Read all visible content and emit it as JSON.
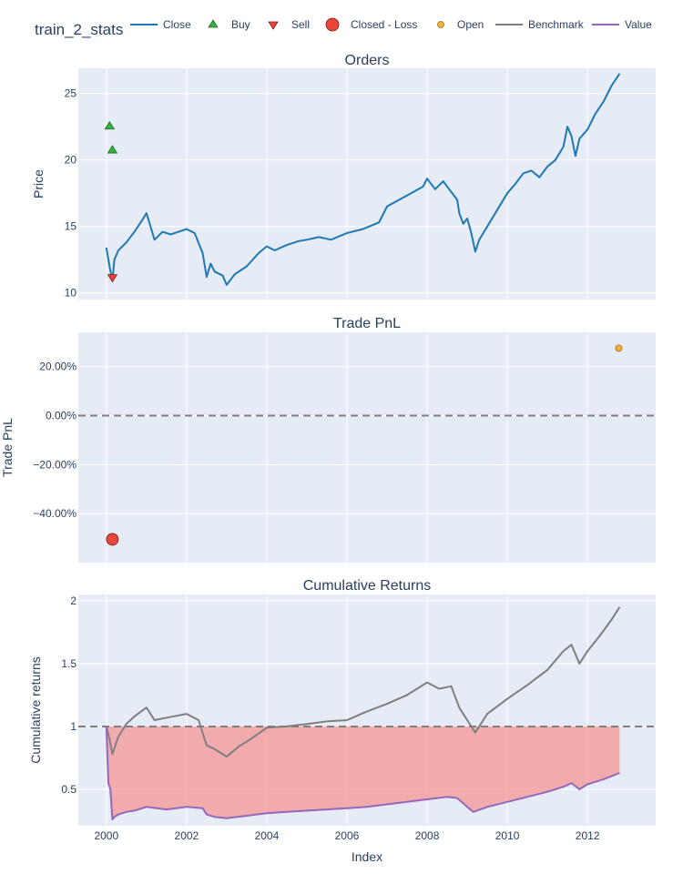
{
  "figure": {
    "title": "train_2_stats",
    "xlabel": "Index"
  },
  "legend": {
    "placement": "top",
    "items": [
      {
        "label": "Close",
        "symbol": "line",
        "color": "#1f77b4"
      },
      {
        "label": "Buy",
        "symbol": "triangle-up",
        "color": "#37b13f"
      },
      {
        "label": "Sell",
        "symbol": "triangle-down",
        "color": "#ea4335"
      },
      {
        "label": "Closed - Loss",
        "symbol": "circle-large",
        "color": "#e8463a"
      },
      {
        "label": "Open",
        "symbol": "circle-small",
        "color": "#f0b43b"
      },
      {
        "label": "Benchmark",
        "symbol": "line",
        "color": "#7f7f7f"
      },
      {
        "label": "Value",
        "symbol": "line",
        "color": "#9467bd"
      }
    ]
  },
  "colors": {
    "plot_bg": "#e5ecf6",
    "grid": "#ffffff",
    "close": "#1f77b4",
    "benchmark": "#7f7f7f",
    "value": "#9467bd",
    "loss_fill": "#f4a0a0",
    "dash": "#7f7f7f"
  },
  "chart_data": [
    {
      "type": "line",
      "title": "Orders",
      "ylabel": "Price",
      "xlim": [
        1999.3,
        2013.7
      ],
      "ylim": [
        9.5,
        26.9
      ],
      "x_ticks": [
        2000,
        2002,
        2004,
        2006,
        2008,
        2010,
        2012
      ],
      "y_ticks": [
        10,
        15,
        20,
        25
      ],
      "y_tick_labels": [
        "10",
        "15",
        "20",
        "25"
      ],
      "series": [
        {
          "name": "Close",
          "x": [
            2000.0,
            2000.08,
            2000.15,
            2000.2,
            2000.3,
            2000.5,
            2000.7,
            2000.9,
            2001.0,
            2001.2,
            2001.4,
            2001.6,
            2001.8,
            2002.0,
            2002.2,
            2002.4,
            2002.5,
            2002.6,
            2002.7,
            2002.9,
            2003.0,
            2003.2,
            2003.5,
            2003.8,
            2004.0,
            2004.2,
            2004.5,
            2004.8,
            2005.0,
            2005.3,
            2005.6,
            2006.0,
            2006.4,
            2006.8,
            2007.0,
            2007.3,
            2007.6,
            2007.9,
            2008.0,
            2008.2,
            2008.4,
            2008.6,
            2008.75,
            2008.8,
            2008.9,
            2009.0,
            2009.1,
            2009.2,
            2009.3,
            2009.5,
            2009.8,
            2010.0,
            2010.2,
            2010.4,
            2010.6,
            2010.8,
            2011.0,
            2011.2,
            2011.4,
            2011.5,
            2011.6,
            2011.7,
            2011.8,
            2012.0,
            2012.2,
            2012.4,
            2012.6,
            2012.8
          ],
          "y": [
            13.4,
            12.0,
            10.9,
            12.5,
            13.2,
            13.8,
            14.6,
            15.5,
            16.0,
            14.0,
            14.6,
            14.4,
            14.6,
            14.8,
            14.5,
            13.0,
            11.2,
            12.2,
            11.6,
            11.3,
            10.6,
            11.4,
            12.0,
            13.0,
            13.5,
            13.2,
            13.6,
            13.9,
            14.0,
            14.2,
            14.0,
            14.5,
            14.8,
            15.3,
            16.5,
            17.0,
            17.5,
            18.0,
            18.6,
            17.8,
            18.4,
            17.6,
            17.0,
            16.0,
            15.2,
            15.6,
            14.5,
            13.1,
            14.0,
            15.0,
            16.5,
            17.5,
            18.2,
            19.0,
            19.2,
            18.7,
            19.5,
            20.0,
            21.0,
            22.5,
            21.8,
            20.3,
            21.6,
            22.3,
            23.5,
            24.4,
            25.6,
            26.5
          ]
        }
      ],
      "markers": [
        {
          "name": "Buy",
          "x": [
            2000.08,
            2000.15
          ],
          "y": [
            22.6,
            20.8
          ]
        },
        {
          "name": "Sell",
          "x": [
            2000.15
          ],
          "y": [
            11.1
          ]
        }
      ]
    },
    {
      "type": "scatter",
      "title": "Trade PnL",
      "ylabel": "Trade PnL",
      "xlim": [
        1999.3,
        2013.7
      ],
      "ylim": [
        -0.6,
        0.34
      ],
      "x_ticks": [
        2000,
        2002,
        2004,
        2006,
        2008,
        2010,
        2012
      ],
      "y_ticks": [
        -0.4,
        -0.2,
        0.0,
        0.2
      ],
      "y_tick_labels": [
        "−40.00%",
        "−20.00%",
        "0.00%",
        "20.00%"
      ],
      "zero_line": 0.0,
      "series": [
        {
          "name": "Closed - Loss",
          "x": [
            2000.15
          ],
          "y": [
            -0.505
          ]
        },
        {
          "name": "Open",
          "x": [
            2012.78
          ],
          "y": [
            0.275
          ]
        }
      ]
    },
    {
      "type": "area",
      "title": "Cumulative Returns",
      "ylabel": "Cumulative returns",
      "xlim": [
        1999.3,
        2013.7
      ],
      "ylim": [
        0.21,
        2.05
      ],
      "x_ticks": [
        2000,
        2002,
        2004,
        2006,
        2008,
        2010,
        2012
      ],
      "x_tick_labels": [
        "2000",
        "2002",
        "2004",
        "2006",
        "2008",
        "2010",
        "2012"
      ],
      "y_ticks": [
        0.5,
        1.0,
        1.5,
        2.0
      ],
      "y_tick_labels": [
        "0.5",
        "1",
        "1.5",
        "2"
      ],
      "baseline": 1.0,
      "series": [
        {
          "name": "Benchmark",
          "x": [
            2000.0,
            2000.08,
            2000.15,
            2000.3,
            2000.5,
            2000.7,
            2001.0,
            2001.2,
            2001.5,
            2002.0,
            2002.3,
            2002.5,
            2002.7,
            2003.0,
            2003.3,
            2003.6,
            2004.0,
            2004.5,
            2005.0,
            2005.5,
            2006.0,
            2006.5,
            2007.0,
            2007.5,
            2008.0,
            2008.3,
            2008.6,
            2008.8,
            2009.0,
            2009.2,
            2009.5,
            2010.0,
            2010.5,
            2011.0,
            2011.4,
            2011.6,
            2011.8,
            2012.0,
            2012.3,
            2012.6,
            2012.8
          ],
          "y": [
            1.0,
            0.9,
            0.78,
            0.92,
            1.02,
            1.08,
            1.15,
            1.05,
            1.07,
            1.1,
            1.05,
            0.85,
            0.82,
            0.76,
            0.84,
            0.9,
            0.99,
            1.0,
            1.02,
            1.04,
            1.05,
            1.12,
            1.18,
            1.25,
            1.35,
            1.3,
            1.32,
            1.15,
            1.05,
            0.95,
            1.1,
            1.22,
            1.33,
            1.45,
            1.6,
            1.65,
            1.5,
            1.6,
            1.72,
            1.85,
            1.95
          ]
        },
        {
          "name": "Value",
          "x": [
            2000.0,
            2000.05,
            2000.1,
            2000.15,
            2000.2,
            2000.3,
            2000.5,
            2000.7,
            2001.0,
            2001.5,
            2002.0,
            2002.4,
            2002.5,
            2002.7,
            2003.0,
            2003.5,
            2004.0,
            2004.5,
            2005.0,
            2005.5,
            2006.0,
            2006.5,
            2007.0,
            2007.5,
            2008.0,
            2008.5,
            2008.75,
            2009.0,
            2009.15,
            2009.5,
            2010.0,
            2010.5,
            2011.0,
            2011.4,
            2011.6,
            2011.8,
            2012.0,
            2012.4,
            2012.8
          ],
          "y": [
            1.0,
            0.55,
            0.5,
            0.26,
            0.28,
            0.3,
            0.32,
            0.33,
            0.36,
            0.34,
            0.36,
            0.35,
            0.3,
            0.28,
            0.27,
            0.29,
            0.31,
            0.32,
            0.33,
            0.34,
            0.35,
            0.36,
            0.38,
            0.4,
            0.42,
            0.44,
            0.43,
            0.36,
            0.32,
            0.36,
            0.4,
            0.44,
            0.48,
            0.52,
            0.55,
            0.5,
            0.54,
            0.58,
            0.63
          ]
        }
      ]
    }
  ]
}
